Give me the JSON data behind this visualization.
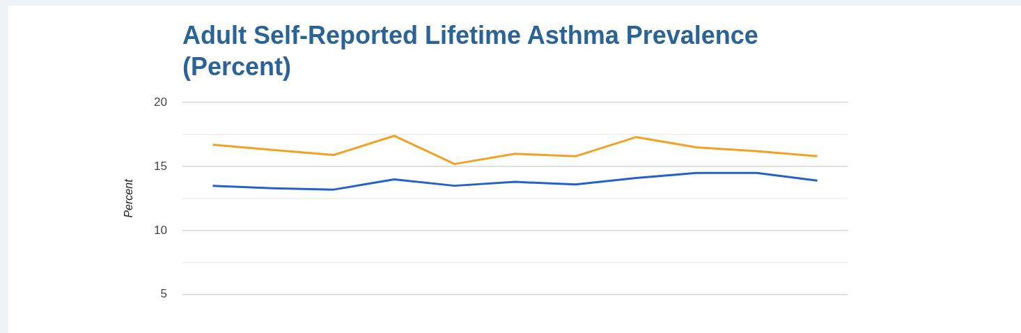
{
  "chart_data": {
    "type": "line",
    "title": "Adult Self-Reported Lifetime Asthma Prevalence (Percent)",
    "ylabel": "Percent",
    "categories": [
      null,
      null,
      null,
      null,
      null,
      null,
      null,
      null,
      null,
      null,
      null
    ],
    "series": [
      {
        "color": "#f4a024",
        "values": [
          16.7,
          16.3,
          15.9,
          17.4,
          15.2,
          16.0,
          15.8,
          17.3,
          16.5,
          16.2,
          15.8
        ]
      },
      {
        "color": "#2360c9",
        "values": [
          13.5,
          13.3,
          13.2,
          14.0,
          13.5,
          13.8,
          13.6,
          14.1,
          14.5,
          14.5,
          13.9
        ]
      }
    ],
    "ylim": [
      5,
      20
    ],
    "yticks": [
      {
        "value": 5,
        "label": "5"
      },
      {
        "value": 7.5,
        "label": null
      },
      {
        "value": 10,
        "label": "10"
      },
      {
        "value": 12.5,
        "label": null
      },
      {
        "value": 15,
        "label": "15"
      },
      {
        "value": 17.5,
        "label": null
      },
      {
        "value": 20,
        "label": "20"
      }
    ],
    "grid": "y",
    "tick_labels": "y",
    "legend": false
  }
}
